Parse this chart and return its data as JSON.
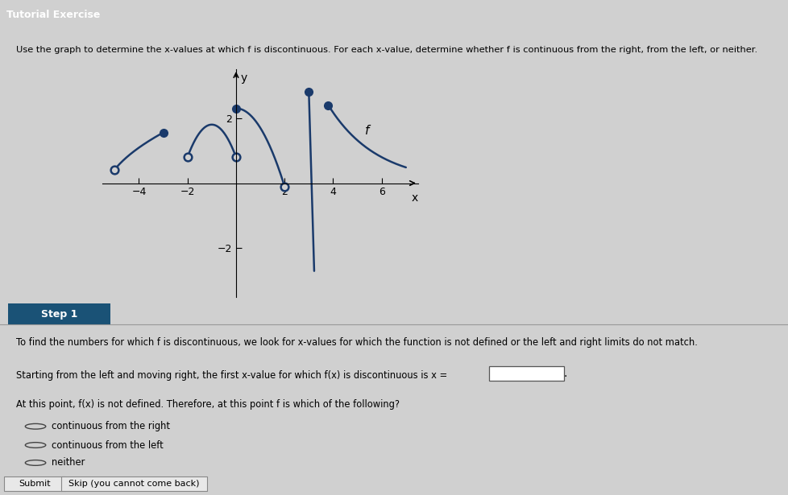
{
  "title_box": "Tutorial Exercise",
  "title_box_bg": "#1a5276",
  "title_box_text_color": "#ffffff",
  "instruction": "Use the graph to determine the x-values at which f is discontinuous. For each x-value, determine whether f is continuous from the right, from the left, or neither.",
  "bg_color": "#d0d0d0",
  "curve_color": "#1a3a6b",
  "axis_color": "#000000",
  "xlim": [
    -5.5,
    7.5
  ],
  "ylim": [
    -3.5,
    3.5
  ],
  "xticks": [
    -4,
    -2,
    2,
    4,
    6
  ],
  "yticks": [
    -2,
    2
  ],
  "step1_box_bg": "#1a5276",
  "step1_text_color": "#ffffff",
  "step1_label": "Step 1",
  "step1_line1": "To find the numbers for which f is discontinuous, we look for x-values for which the function is not defined or the left and right limits do not match.",
  "step1_line2": "Starting from the left and moving right, the first x-value for which f(x) is discontinuous is x =",
  "step1_line3": "At this point, f(x) is not defined. Therefore, at this point f is which of the following?",
  "radio_options": [
    "continuous from the right",
    "continuous from the left",
    "neither"
  ],
  "submit_text": "Submit",
  "skip_text": "Skip (you cannot come back)",
  "f_label": "f"
}
